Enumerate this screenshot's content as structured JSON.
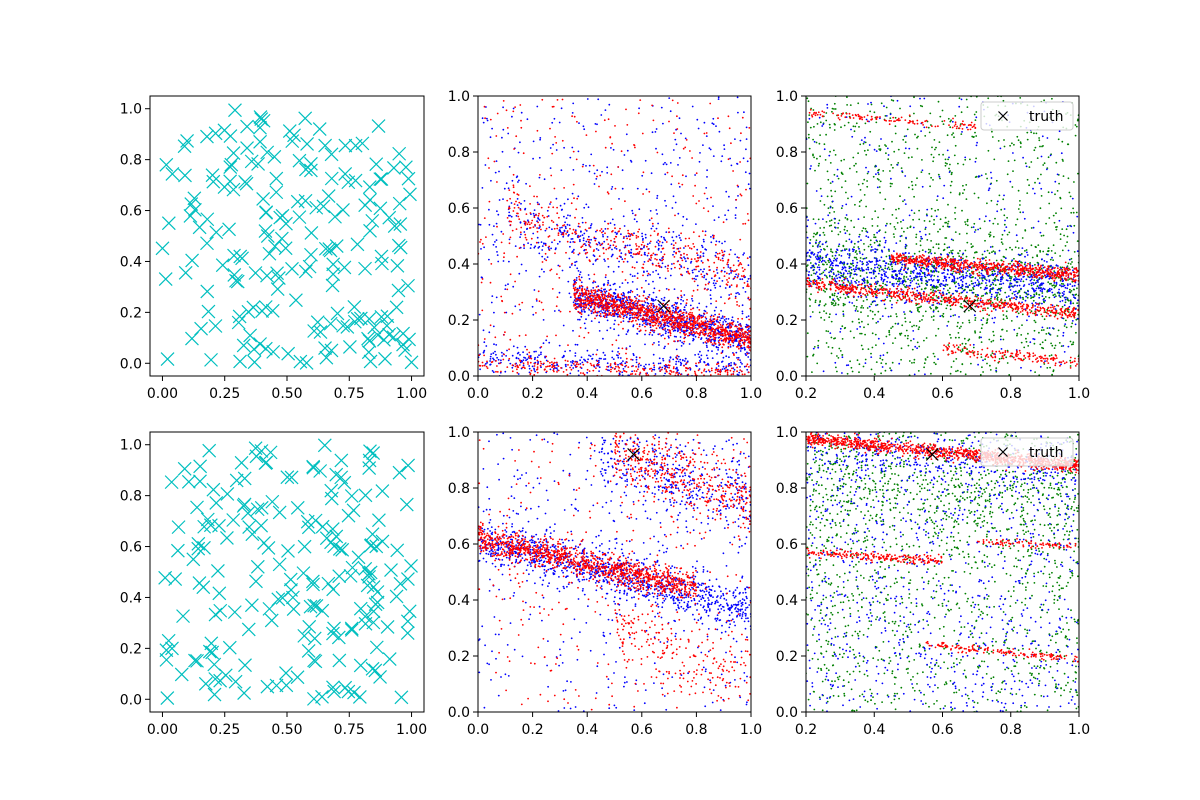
{
  "figure": {
    "rows": 2,
    "cols": 3
  },
  "chart_data": [
    {
      "type": "scatter",
      "panel": "r1c1",
      "xlim": [
        -0.05,
        1.05
      ],
      "ylim": [
        -0.05,
        1.05
      ],
      "xticks": [
        "0.00",
        "0.25",
        "0.50",
        "0.75",
        "1.00"
      ],
      "yticks": [
        "0.0",
        "0.2",
        "0.4",
        "0.6",
        "0.8",
        "1.0"
      ],
      "grid": false,
      "series": [
        {
          "marker": "x-large",
          "color": "#00bfbf",
          "count": 200,
          "distribution": "uniform random in [0,1]x[0,1]"
        }
      ]
    },
    {
      "type": "scatter",
      "panel": "r1c2",
      "xlim": [
        0,
        1
      ],
      "ylim": [
        0,
        1
      ],
      "xticks": [
        "0.0",
        "0.2",
        "0.4",
        "0.6",
        "0.8",
        "1.0"
      ],
      "yticks": [
        "0.0",
        "0.2",
        "0.4",
        "0.6",
        "0.8",
        "1.0"
      ],
      "grid": false,
      "series": [
        {
          "color": "#0000ff",
          "marker": "dot",
          "bands": [
            {
              "x0": 0.35,
              "x1": 1.0,
              "y0": 0.29,
              "y1": 0.13,
              "spread": 0.035,
              "n": 900
            },
            {
              "x0": 0.0,
              "x1": 1.0,
              "y0": 0.06,
              "y1": 0.03,
              "spread": 0.025,
              "n": 300
            },
            {
              "x0": 0.1,
              "x1": 1.0,
              "y0": 0.55,
              "y1": 0.35,
              "spread": 0.06,
              "n": 350
            }
          ],
          "noise": 500
        },
        {
          "color": "#ff0000",
          "marker": "dot",
          "bands": [
            {
              "x0": 0.35,
              "x1": 1.0,
              "y0": 0.29,
              "y1": 0.13,
              "spread": 0.025,
              "n": 1100
            },
            {
              "x0": 0.0,
              "x1": 1.0,
              "y0": 0.04,
              "y1": 0.01,
              "spread": 0.015,
              "n": 250
            },
            {
              "x0": 0.1,
              "x1": 1.0,
              "y0": 0.58,
              "y1": 0.36,
              "spread": 0.05,
              "n": 350
            }
          ],
          "noise": 350
        }
      ],
      "truth": {
        "x": 0.68,
        "y": 0.25
      }
    },
    {
      "type": "scatter",
      "panel": "r1c3",
      "xlim": [
        0.2,
        1
      ],
      "ylim": [
        0,
        1
      ],
      "xticks": [
        "0.2",
        "0.4",
        "0.6",
        "0.8",
        "1.0"
      ],
      "yticks": [
        "0.0",
        "0.2",
        "0.4",
        "0.6",
        "0.8",
        "1.0"
      ],
      "grid": false,
      "legend": {
        "location": "upper right",
        "entries": [
          {
            "marker": "x",
            "color": "#000000",
            "label": "truth"
          }
        ]
      },
      "series": [
        {
          "color": "#008000",
          "marker": "dot",
          "noise": 1100,
          "bands": [
            {
              "x0": 0.2,
              "x1": 1.0,
              "y0": 0.38,
              "y1": 0.3,
              "spread": 0.09,
              "n": 700
            }
          ]
        },
        {
          "color": "#0000ff",
          "marker": "dot",
          "noise": 350,
          "bands": [
            {
              "x0": 0.2,
              "x1": 1.0,
              "y0": 0.4,
              "y1": 0.32,
              "spread": 0.05,
              "n": 900
            }
          ]
        },
        {
          "color": "#ff0000",
          "marker": "dot",
          "bands": [
            {
              "x0": 0.2,
              "x1": 1.0,
              "y0": 0.33,
              "y1": 0.22,
              "spread": 0.012,
              "n": 600
            },
            {
              "x0": 0.45,
              "x1": 1.0,
              "y0": 0.42,
              "y1": 0.36,
              "spread": 0.012,
              "n": 650
            },
            {
              "x0": 0.2,
              "x1": 0.7,
              "y0": 0.94,
              "y1": 0.89,
              "spread": 0.008,
              "n": 120
            },
            {
              "x0": 0.6,
              "x1": 1.0,
              "y0": 0.1,
              "y1": 0.05,
              "spread": 0.01,
              "n": 150
            }
          ]
        }
      ],
      "truth": {
        "x": 0.68,
        "y": 0.25
      }
    },
    {
      "type": "scatter",
      "panel": "r2c1",
      "xlim": [
        -0.05,
        1.05
      ],
      "ylim": [
        -0.05,
        1.05
      ],
      "xticks": [
        "0.00",
        "0.25",
        "0.50",
        "0.75",
        "1.00"
      ],
      "yticks": [
        "0.0",
        "0.2",
        "0.4",
        "0.6",
        "0.8",
        "1.0"
      ],
      "grid": false,
      "series": [
        {
          "marker": "x-large",
          "color": "#00bfbf",
          "count": 200,
          "distribution": "uniform random in [0,1]x[0,1]"
        }
      ]
    },
    {
      "type": "scatter",
      "panel": "r2c2",
      "xlim": [
        0,
        1
      ],
      "ylim": [
        0,
        1
      ],
      "xticks": [
        "0.0",
        "0.2",
        "0.4",
        "0.6",
        "0.8",
        "1.0"
      ],
      "yticks": [
        "0.0",
        "0.2",
        "0.4",
        "0.6",
        "0.8",
        "1.0"
      ],
      "grid": false,
      "series": [
        {
          "color": "#0000ff",
          "marker": "dot",
          "bands": [
            {
              "x0": 0.0,
              "x1": 1.0,
              "y0": 0.62,
              "y1": 0.36,
              "spread": 0.04,
              "n": 1000
            },
            {
              "x0": 0.45,
              "x1": 1.0,
              "y0": 0.92,
              "y1": 0.75,
              "spread": 0.07,
              "n": 350
            }
          ],
          "noise": 400
        },
        {
          "color": "#ff0000",
          "marker": "dot",
          "bands": [
            {
              "x0": 0.0,
              "x1": 0.8,
              "y0": 0.62,
              "y1": 0.44,
              "spread": 0.025,
              "n": 1100
            },
            {
              "x0": 0.5,
              "x1": 1.0,
              "y0": 0.93,
              "y1": 0.75,
              "spread": 0.06,
              "n": 400
            },
            {
              "x0": 0.5,
              "x1": 1.0,
              "y0": 0.3,
              "y1": 0.12,
              "spread": 0.07,
              "n": 200
            }
          ],
          "noise": 300
        }
      ],
      "truth": {
        "x": 0.57,
        "y": 0.92
      }
    },
    {
      "type": "scatter",
      "panel": "r2c3",
      "xlim": [
        0.2,
        1
      ],
      "ylim": [
        0,
        1
      ],
      "xticks": [
        "0.2",
        "0.4",
        "0.6",
        "0.8",
        "1.0"
      ],
      "yticks": [
        "0.0",
        "0.2",
        "0.4",
        "0.6",
        "0.8",
        "1.0"
      ],
      "grid": false,
      "legend": {
        "location": "upper right",
        "entries": [
          {
            "marker": "x",
            "color": "#000000",
            "label": "truth"
          }
        ]
      },
      "series": [
        {
          "color": "#008000",
          "marker": "dot",
          "noise": 1200,
          "bands": [
            {
              "x0": 0.2,
              "x1": 1.0,
              "y0": 0.85,
              "y1": 0.75,
              "spread": 0.12,
              "n": 500
            }
          ]
        },
        {
          "color": "#0000ff",
          "marker": "dot",
          "noise": 900,
          "bands": [
            {
              "x0": 0.2,
              "x1": 1.0,
              "y0": 0.95,
              "y1": 0.86,
              "spread": 0.04,
              "n": 300
            }
          ]
        },
        {
          "color": "#ff0000",
          "marker": "dot",
          "bands": [
            {
              "x0": 0.2,
              "x1": 1.0,
              "y0": 0.975,
              "y1": 0.88,
              "spread": 0.012,
              "n": 1000
            },
            {
              "x0": 0.2,
              "x1": 0.6,
              "y0": 0.57,
              "y1": 0.54,
              "spread": 0.008,
              "n": 200
            },
            {
              "x0": 0.7,
              "x1": 1.0,
              "y0": 0.61,
              "y1": 0.59,
              "spread": 0.006,
              "n": 80
            },
            {
              "x0": 0.55,
              "x1": 1.0,
              "y0": 0.24,
              "y1": 0.19,
              "spread": 0.006,
              "n": 150
            }
          ]
        }
      ],
      "truth": {
        "x": 0.57,
        "y": 0.92
      }
    }
  ]
}
